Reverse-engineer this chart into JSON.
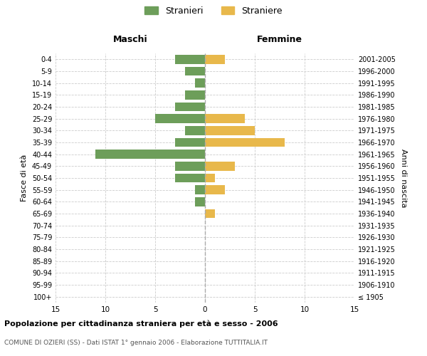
{
  "age_groups": [
    "100+",
    "95-99",
    "90-94",
    "85-89",
    "80-84",
    "75-79",
    "70-74",
    "65-69",
    "60-64",
    "55-59",
    "50-54",
    "45-49",
    "40-44",
    "35-39",
    "30-34",
    "25-29",
    "20-24",
    "15-19",
    "10-14",
    "5-9",
    "0-4"
  ],
  "birth_years": [
    "≤ 1905",
    "1906-1910",
    "1911-1915",
    "1916-1920",
    "1921-1925",
    "1926-1930",
    "1931-1935",
    "1936-1940",
    "1941-1945",
    "1946-1950",
    "1951-1955",
    "1956-1960",
    "1961-1965",
    "1966-1970",
    "1971-1975",
    "1976-1980",
    "1981-1985",
    "1986-1990",
    "1991-1995",
    "1996-2000",
    "2001-2005"
  ],
  "maschi": [
    0,
    0,
    0,
    0,
    0,
    0,
    0,
    0,
    1,
    1,
    3,
    3,
    11,
    3,
    2,
    5,
    3,
    2,
    1,
    2,
    3
  ],
  "femmine": [
    0,
    0,
    0,
    0,
    0,
    0,
    0,
    1,
    0,
    2,
    1,
    3,
    0,
    8,
    5,
    4,
    0,
    0,
    0,
    0,
    2
  ],
  "maschi_color": "#6d9e5a",
  "femmine_color": "#e8b84b",
  "title": "Popolazione per cittadinanza straniera per età e sesso - 2006",
  "subtitle": "COMUNE DI OZIERI (SS) - Dati ISTAT 1° gennaio 2006 - Elaborazione TUTTITALIA.IT",
  "ylabel_left": "Fasce di età",
  "ylabel_right": "Anni di nascita",
  "col_header_left": "Maschi",
  "col_header_right": "Femmine",
  "legend_stranieri": "Stranieri",
  "legend_straniere": "Straniere",
  "bg_color": "#ffffff",
  "grid_color": "#cccccc",
  "bar_height": 0.75,
  "xlim": 15
}
